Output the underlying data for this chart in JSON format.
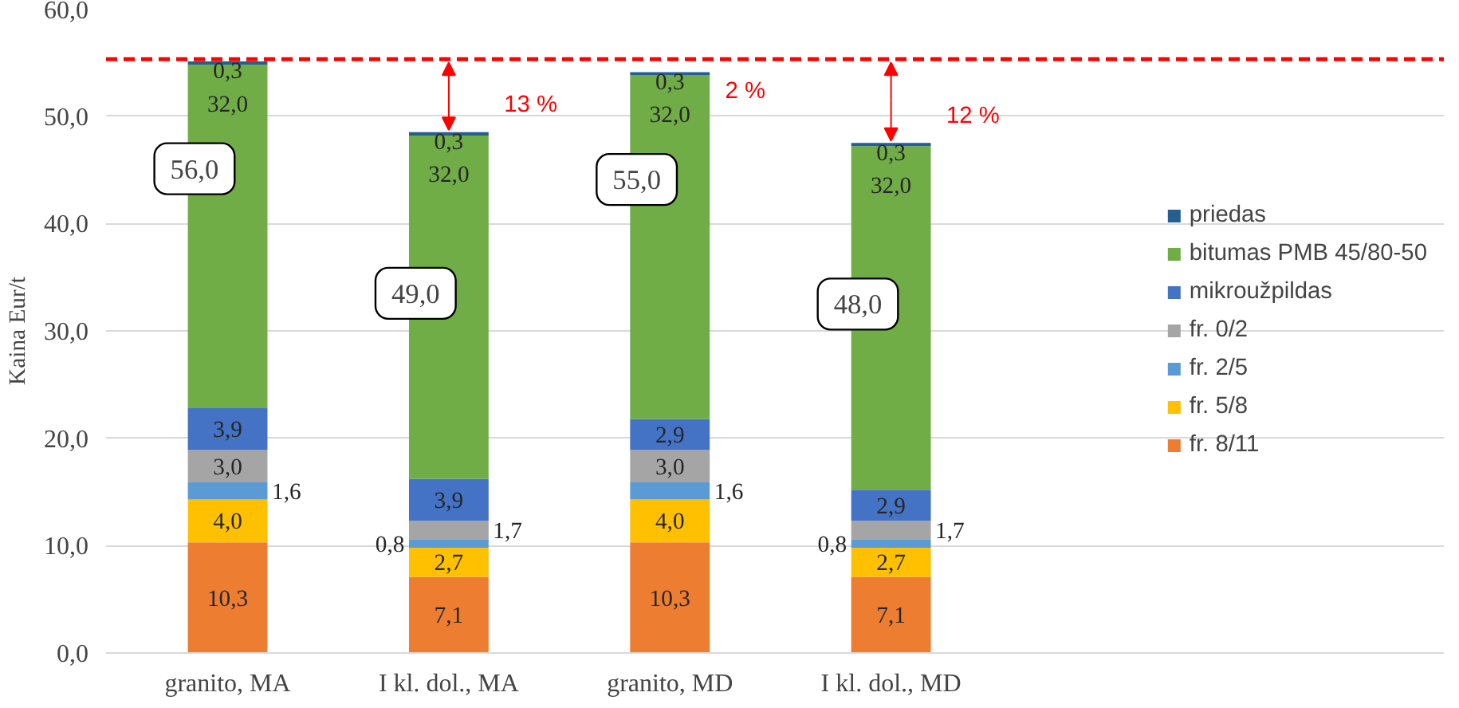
{
  "chart_data": {
    "type": "bar",
    "stacked": true,
    "ylabel": "Kaina Eur/t",
    "categories": [
      "granito, MA",
      "I kl. dol., MA",
      "granito, MD",
      "I kl. dol., MD"
    ],
    "series": [
      {
        "name": "fr. 8/11",
        "color": "#ed7d31",
        "values": [
          10.3,
          7.1,
          10.3,
          7.1
        ],
        "value_labels": [
          "10,3",
          "7,1",
          "10,3",
          "7,1"
        ]
      },
      {
        "name": "fr. 5/8",
        "color": "#ffc000",
        "values": [
          4.0,
          2.7,
          4.0,
          2.7
        ],
        "value_labels": [
          "4,0",
          "2,7",
          "4,0",
          "2,7"
        ]
      },
      {
        "name": "fr. 2/5",
        "color": "#5b9bd5",
        "values": [
          1.6,
          0.8,
          1.6,
          0.8
        ],
        "value_labels": [
          "1,6",
          "0,8",
          "1,6",
          "0,8"
        ]
      },
      {
        "name": "fr. 0/2",
        "color": "#a5a5a5",
        "values": [
          3.0,
          1.7,
          3.0,
          1.7
        ],
        "value_labels": [
          "3,0",
          "1,7",
          "3,0",
          "1,7"
        ]
      },
      {
        "name": "mikroužpildas",
        "color": "#4472c4",
        "values": [
          3.9,
          3.9,
          2.9,
          2.9
        ],
        "value_labels": [
          "3,9",
          "3,9",
          "2,9",
          "2,9"
        ]
      },
      {
        "name": "bitumas PMB 45/80-50",
        "color": "#70ad47",
        "values": [
          32.0,
          32.0,
          32.0,
          32.0
        ],
        "value_labels": [
          "32,0",
          "32,0",
          "32,0",
          "32,0"
        ]
      },
      {
        "name": "priedas",
        "color": "#255e91",
        "values": [
          0.3,
          0.3,
          0.3,
          0.3
        ],
        "value_labels": [
          "0,3",
          "0,3",
          "0,3",
          "0,3"
        ]
      }
    ],
    "ylim": [
      0,
      60
    ],
    "yticks": [
      {
        "value": 0,
        "label": "0,0"
      },
      {
        "value": 10,
        "label": "10,0"
      },
      {
        "value": 20,
        "label": "20,0"
      },
      {
        "value": 30,
        "label": "30,0"
      },
      {
        "value": 40,
        "label": "40,0"
      },
      {
        "value": 50,
        "label": "50,0"
      },
      {
        "value": 60,
        "label": "60,0"
      }
    ],
    "grid": "y",
    "legend": "right",
    "ref_lines": [
      {
        "axis": "y",
        "value": 55.3,
        "color": "#ff0000",
        "line_style": "dashed"
      }
    ],
    "annotations": [
      "56,0",
      "49,0",
      "55,0",
      "48,0",
      "13 %",
      "2 %",
      "12 %"
    ]
  }
}
